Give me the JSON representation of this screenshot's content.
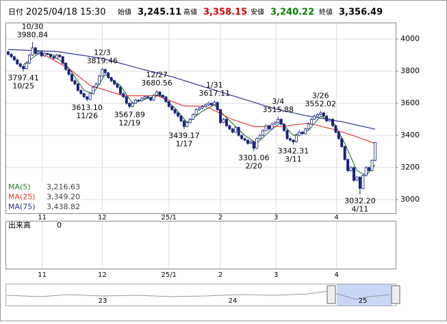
{
  "header": {
    "date_label": "日付",
    "datetime": "2025/04/18 15:30",
    "fields": [
      {
        "label": "始値",
        "value": "3,245.11",
        "color": "#000000"
      },
      {
        "label": "高値",
        "value": "3,358.15",
        "color": "#d00000"
      },
      {
        "label": "安値",
        "value": "3,240.22",
        "color": "#008000"
      },
      {
        "label": "終値",
        "value": "3,356.49",
        "color": "#000000"
      }
    ]
  },
  "chart_data": {
    "type": "candlestick",
    "ylim": [
      2915,
      4094
    ],
    "yticks": [
      3000,
      3200,
      3400,
      3600,
      3800,
      4000
    ],
    "grid": true,
    "xticks": [
      {
        "value": 11.2,
        "label": "11"
      },
      {
        "value": 31,
        "label": "12"
      },
      {
        "value": 53,
        "label": "25/1"
      },
      {
        "value": 70,
        "label": "2"
      },
      {
        "value": 88.3,
        "label": "3"
      },
      {
        "value": 108.3,
        "label": "4"
      }
    ],
    "up_color": "#ffffff",
    "down_color": "#1a237e",
    "candles": [
      [
        3920,
        3928,
        3898,
        3905
      ],
      [
        3905,
        3912,
        3882,
        3890
      ],
      [
        3890,
        3895,
        3862,
        3870
      ],
      [
        3870,
        3878,
        3838,
        3845
      ],
      [
        3845,
        3852,
        3820,
        3830
      ],
      [
        3830,
        3836,
        3797.41,
        3815
      ],
      [
        3815,
        3858,
        3810,
        3850
      ],
      [
        3850,
        3908,
        3845,
        3900
      ],
      [
        3900,
        3980.84,
        3895,
        3945
      ],
      [
        3945,
        3950,
        3900,
        3910
      ],
      [
        3910,
        3928,
        3902,
        3920
      ],
      [
        3920,
        3925,
        3888,
        3895
      ],
      [
        3895,
        3918,
        3890,
        3910
      ],
      [
        3910,
        3915,
        3898,
        3905
      ],
      [
        3905,
        3910,
        3882,
        3890
      ],
      [
        3890,
        3895,
        3872,
        3880
      ],
      [
        3880,
        3908,
        3875,
        3900
      ],
      [
        3900,
        3905,
        3882,
        3890
      ],
      [
        3890,
        3895,
        3842,
        3850
      ],
      [
        3850,
        3856,
        3802,
        3810
      ],
      [
        3810,
        3815,
        3772,
        3780
      ],
      [
        3780,
        3788,
        3732,
        3740
      ],
      [
        3740,
        3748,
        3712,
        3720
      ],
      [
        3720,
        3726,
        3672,
        3680
      ],
      [
        3680,
        3688,
        3652,
        3660
      ],
      [
        3660,
        3668,
        3632,
        3640
      ],
      [
        3640,
        3646,
        3613.1,
        3625
      ],
      [
        3625,
        3668,
        3620,
        3660
      ],
      [
        3660,
        3708,
        3655,
        3700
      ],
      [
        3700,
        3728,
        3692,
        3720
      ],
      [
        3720,
        3778,
        3715,
        3770
      ],
      [
        3770,
        3819.46,
        3765,
        3810
      ],
      [
        3810,
        3815,
        3782,
        3790
      ],
      [
        3790,
        3795,
        3752,
        3760
      ],
      [
        3760,
        3766,
        3732,
        3740
      ],
      [
        3740,
        3746,
        3712,
        3720
      ],
      [
        3720,
        3726,
        3692,
        3700
      ],
      [
        3700,
        3706,
        3652,
        3660
      ],
      [
        3660,
        3668,
        3632,
        3640
      ],
      [
        3640,
        3646,
        3592,
        3600
      ],
      [
        3600,
        3606,
        3567.89,
        3580
      ],
      [
        3580,
        3608,
        3575,
        3600
      ],
      [
        3600,
        3628,
        3595,
        3620
      ],
      [
        3620,
        3626,
        3608,
        3615
      ],
      [
        3615,
        3638,
        3610,
        3630
      ],
      [
        3630,
        3648,
        3625,
        3640
      ],
      [
        3640,
        3646,
        3628,
        3635
      ],
      [
        3635,
        3640,
        3612,
        3620
      ],
      [
        3620,
        3658,
        3615,
        3650
      ],
      [
        3650,
        3680.56,
        3645,
        3670
      ],
      [
        3670,
        3676,
        3642,
        3650
      ],
      [
        3650,
        3656,
        3632,
        3640
      ],
      [
        3640,
        3646,
        3602,
        3610
      ],
      [
        3610,
        3616,
        3572,
        3580
      ],
      [
        3580,
        3586,
        3552,
        3560
      ],
      [
        3560,
        3566,
        3532,
        3540
      ],
      [
        3540,
        3546,
        3512,
        3520
      ],
      [
        3520,
        3526,
        3482,
        3490
      ],
      [
        3490,
        3496,
        3439.17,
        3455
      ],
      [
        3455,
        3488,
        3450,
        3480
      ],
      [
        3480,
        3508,
        3475,
        3500
      ],
      [
        3500,
        3538,
        3495,
        3530
      ],
      [
        3530,
        3568,
        3525,
        3560
      ],
      [
        3560,
        3578,
        3552,
        3570
      ],
      [
        3570,
        3588,
        3562,
        3580
      ],
      [
        3580,
        3598,
        3572,
        3590
      ],
      [
        3590,
        3608,
        3582,
        3600
      ],
      [
        3600,
        3606,
        3582,
        3590
      ],
      [
        3590,
        3617.11,
        3585,
        3605
      ],
      [
        3605,
        3610,
        3552,
        3560
      ],
      [
        3560,
        3566,
        3472,
        3480
      ],
      [
        3480,
        3508,
        3475,
        3500
      ],
      [
        3500,
        3506,
        3452,
        3460
      ],
      [
        3460,
        3466,
        3432,
        3440
      ],
      [
        3440,
        3446,
        3412,
        3420
      ],
      [
        3420,
        3458,
        3415,
        3450
      ],
      [
        3450,
        3456,
        3392,
        3400
      ],
      [
        3400,
        3406,
        3372,
        3380
      ],
      [
        3380,
        3386,
        3362,
        3370
      ],
      [
        3370,
        3376,
        3342,
        3350
      ],
      [
        3350,
        3368,
        3345,
        3360
      ],
      [
        3360,
        3366,
        3301.06,
        3320
      ],
      [
        3320,
        3388,
        3315,
        3380
      ],
      [
        3380,
        3408,
        3375,
        3400
      ],
      [
        3400,
        3438,
        3395,
        3430
      ],
      [
        3430,
        3468,
        3425,
        3460
      ],
      [
        3460,
        3466,
        3432,
        3440
      ],
      [
        3440,
        3478,
        3435,
        3470
      ],
      [
        3470,
        3488,
        3465,
        3480
      ],
      [
        3480,
        3515.88,
        3475,
        3500
      ],
      [
        3500,
        3506,
        3462,
        3470
      ],
      [
        3470,
        3476,
        3422,
        3430
      ],
      [
        3430,
        3436,
        3372,
        3380
      ],
      [
        3380,
        3386,
        3362,
        3370
      ],
      [
        3370,
        3376,
        3342.31,
        3360
      ],
      [
        3360,
        3408,
        3355,
        3400
      ],
      [
        3400,
        3428,
        3395,
        3420
      ],
      [
        3420,
        3426,
        3402,
        3410
      ],
      [
        3410,
        3448,
        3405,
        3440
      ],
      [
        3440,
        3478,
        3435,
        3470
      ],
      [
        3470,
        3508,
        3465,
        3500
      ],
      [
        3500,
        3528,
        3495,
        3520
      ],
      [
        3520,
        3538,
        3515,
        3530
      ],
      [
        3530,
        3552.02,
        3525,
        3540
      ],
      [
        3540,
        3546,
        3512,
        3520
      ],
      [
        3520,
        3526,
        3482,
        3490
      ],
      [
        3490,
        3508,
        3485,
        3500
      ],
      [
        3500,
        3506,
        3452,
        3460
      ],
      [
        3460,
        3466,
        3412,
        3420
      ],
      [
        3420,
        3426,
        3372,
        3380
      ],
      [
        3380,
        3386,
        3322,
        3330
      ],
      [
        3330,
        3336,
        3242,
        3250
      ],
      [
        3250,
        3256,
        3172,
        3180
      ],
      [
        3180,
        3208,
        3175,
        3200
      ],
      [
        3200,
        3206,
        3112,
        3120
      ],
      [
        3120,
        3148,
        3115,
        3140
      ],
      [
        3140,
        3146,
        3032.2,
        3070
      ],
      [
        3070,
        3158,
        3065,
        3150
      ],
      [
        3150,
        3208,
        3145,
        3200
      ],
      [
        3200,
        3206,
        3172,
        3180
      ],
      [
        3180,
        3250,
        3175,
        3245
      ],
      [
        3245.11,
        3358.15,
        3240.22,
        3356.49
      ]
    ],
    "annotations": [
      {
        "date": "10/30",
        "value": 3980.84
      },
      {
        "date": "10/25",
        "value": 3797.41
      },
      {
        "date": "11/26",
        "value": 3613.1,
        "value_label": "3613.10"
      },
      {
        "date": "12/3",
        "value": 3819.46
      },
      {
        "date": "12/19",
        "value": 3567.89
      },
      {
        "date": "12/27",
        "value": 3680.56
      },
      {
        "date": "1/17",
        "value": 3439.17
      },
      {
        "date": "1/31",
        "value": 3617.11
      },
      {
        "date": "2/20",
        "value": 3301.06
      },
      {
        "date": "3/4",
        "value": 3515.88
      },
      {
        "date": "3/11",
        "value": 3342.31
      },
      {
        "date": "3/26",
        "value": 3552.02
      },
      {
        "date": "4/11",
        "value": 3032.2,
        "value_label": "3032.20"
      }
    ],
    "series": [
      {
        "name": "MA(5)",
        "color": "#2e7d32",
        "value": 3216.63,
        "value_label": "3,216.63",
        "x": [
          5,
          10,
          15,
          20,
          25,
          28,
          32,
          37,
          41,
          46,
          50,
          55,
          59,
          64,
          68,
          72,
          78,
          82,
          87,
          90,
          94,
          99,
          103,
          107,
          111,
          115,
          118,
          121
        ],
        "values": [
          3840,
          3910,
          3900,
          3820,
          3680,
          3660,
          3780,
          3710,
          3600,
          3630,
          3650,
          3570,
          3480,
          3550,
          3590,
          3510,
          3400,
          3350,
          3440,
          3480,
          3400,
          3430,
          3520,
          3490,
          3350,
          3180,
          3150,
          3216.63
        ]
      },
      {
        "name": "MA(25)",
        "color": "#e53935",
        "value": 3349.2,
        "value_label": "3,349.20",
        "x": [
          11,
          20,
          27,
          38,
          49,
          58,
          65,
          74,
          81,
          90,
          99,
          108,
          115,
          121
        ],
        "values": [
          3910,
          3817,
          3711,
          3647,
          3647,
          3583,
          3583,
          3498,
          3455,
          3455,
          3476,
          3434,
          3391,
          3349.2
        ]
      },
      {
        "name": "MA(75)",
        "color": "#283593",
        "value": 3438.82,
        "value_label": "3,438.82",
        "x": [
          0,
          16,
          31,
          43,
          54,
          65,
          76,
          88,
          99,
          110,
          121
        ],
        "values": [
          3935,
          3922,
          3880,
          3818,
          3765,
          3700,
          3635,
          3565,
          3520,
          3485,
          3438.82
        ]
      }
    ],
    "volume": {
      "label": "出来高",
      "yticks": [
        0
      ]
    },
    "navigator": {
      "labels": [
        "23",
        "24",
        "25"
      ]
    }
  }
}
